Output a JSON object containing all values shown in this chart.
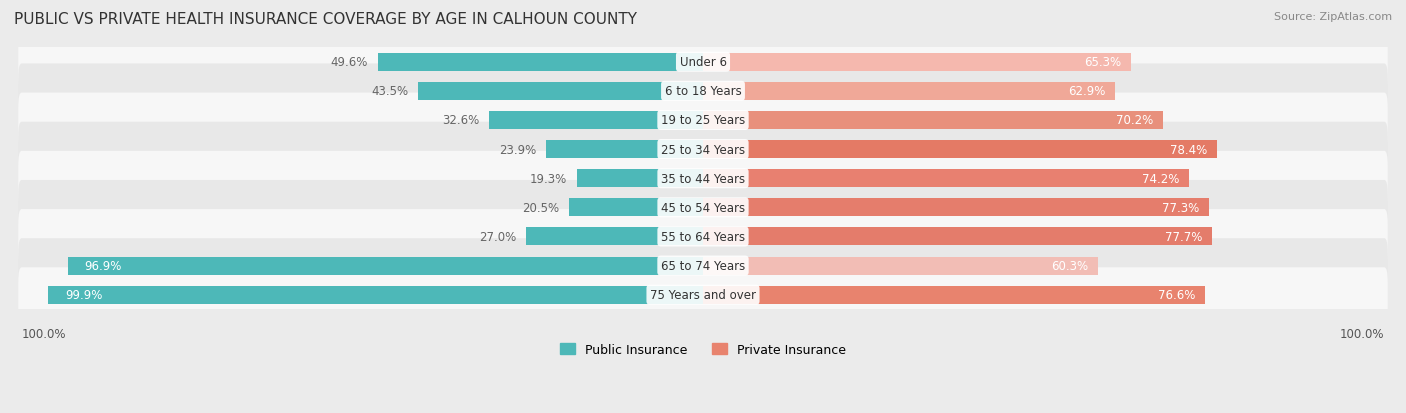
{
  "title": "PUBLIC VS PRIVATE HEALTH INSURANCE COVERAGE BY AGE IN CALHOUN COUNTY",
  "source": "Source: ZipAtlas.com",
  "categories": [
    "Under 6",
    "6 to 18 Years",
    "19 to 25 Years",
    "25 to 34 Years",
    "35 to 44 Years",
    "45 to 54 Years",
    "55 to 64 Years",
    "65 to 74 Years",
    "75 Years and over"
  ],
  "public_values": [
    49.6,
    43.5,
    32.6,
    23.9,
    19.3,
    20.5,
    27.0,
    96.9,
    99.9
  ],
  "private_values": [
    65.3,
    62.9,
    70.2,
    78.4,
    74.2,
    77.3,
    77.7,
    60.3,
    76.6
  ],
  "public_color": "#4db8b8",
  "private_colors": [
    "#f5b8ae",
    "#f0a898",
    "#e8907c",
    "#e47a65",
    "#e88070",
    "#e57d6c",
    "#e47c6b",
    "#f2bdb5",
    "#e8836e"
  ],
  "bg_color": "#ebebeb",
  "row_bg_odd": "#f7f7f7",
  "row_bg_even": "#e8e8e8",
  "label_color_dark": "#666666",
  "label_color_white": "#ffffff",
  "axis_label_left": "100.0%",
  "axis_label_right": "100.0%",
  "legend_public": "Public Insurance",
  "legend_private": "Private Insurance",
  "title_fontsize": 11,
  "label_fontsize": 8.5,
  "category_fontsize": 8.5,
  "legend_fontsize": 9,
  "source_fontsize": 8
}
